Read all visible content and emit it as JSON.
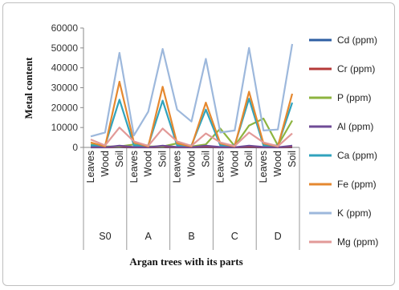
{
  "chart_data": {
    "type": "line",
    "title": "",
    "xlabel": "Argan trees with its parts",
    "ylabel": "Metal content",
    "ylim": [
      0,
      60000
    ],
    "yticks": [
      0,
      10000,
      20000,
      30000,
      40000,
      50000,
      60000
    ],
    "groups": [
      {
        "name": "S0",
        "categories": [
          "Leaves",
          "Wood",
          "Soil"
        ]
      },
      {
        "name": "A",
        "categories": [
          "Leaves",
          "Wood",
          "Soil"
        ]
      },
      {
        "name": "B",
        "categories": [
          "Leaves",
          "Wood",
          "Soil"
        ]
      },
      {
        "name": "C",
        "categories": [
          "Leaves",
          "Wood",
          "Soil"
        ]
      },
      {
        "name": "D",
        "categories": [
          "Leaves",
          "Wood",
          "Soil"
        ]
      }
    ],
    "legend_position": "right",
    "series": [
      {
        "name": "Cd (ppm)",
        "color": "#2e5fa3",
        "values": [
          20,
          20,
          60,
          20,
          20,
          60,
          20,
          20,
          60,
          20,
          20,
          60,
          20,
          20,
          60
        ]
      },
      {
        "name": "Cr (ppm)",
        "color": "#b53a38",
        "values": [
          100,
          60,
          350,
          100,
          60,
          350,
          100,
          60,
          350,
          100,
          60,
          350,
          100,
          60,
          350
        ]
      },
      {
        "name": "P (ppm)",
        "color": "#8db43f",
        "values": [
          1500,
          500,
          500,
          1500,
          500,
          500,
          2000,
          500,
          1500,
          9500,
          700,
          11000,
          14500,
          1000,
          13500
        ]
      },
      {
        "name": "Al (ppm)",
        "color": "#6f4b96",
        "values": [
          200,
          100,
          900,
          200,
          100,
          900,
          200,
          100,
          900,
          200,
          100,
          900,
          200,
          100,
          900
        ]
      },
      {
        "name": "Ca (ppm)",
        "color": "#30a3bd",
        "values": [
          1000,
          1000,
          24000,
          1000,
          1000,
          23500,
          1000,
          1000,
          19000,
          1000,
          1000,
          24500,
          1000,
          1000,
          22500
        ]
      },
      {
        "name": "Fe (ppm)",
        "color": "#e5882f",
        "values": [
          2500,
          500,
          33000,
          2500,
          500,
          30500,
          2000,
          500,
          22500,
          2000,
          500,
          28000,
          2000,
          500,
          27000
        ]
      },
      {
        "name": "K (ppm)",
        "color": "#9db8dc",
        "values": [
          5500,
          7500,
          47500,
          6000,
          18000,
          49500,
          19000,
          13000,
          44500,
          7500,
          8500,
          50000,
          8500,
          9000,
          52000
        ]
      },
      {
        "name": "Mg (ppm)",
        "color": "#e29a98",
        "values": [
          4000,
          1000,
          10000,
          3000,
          800,
          9500,
          3000,
          800,
          7000,
          2500,
          700,
          7500,
          2500,
          600,
          7000
        ]
      }
    ]
  }
}
